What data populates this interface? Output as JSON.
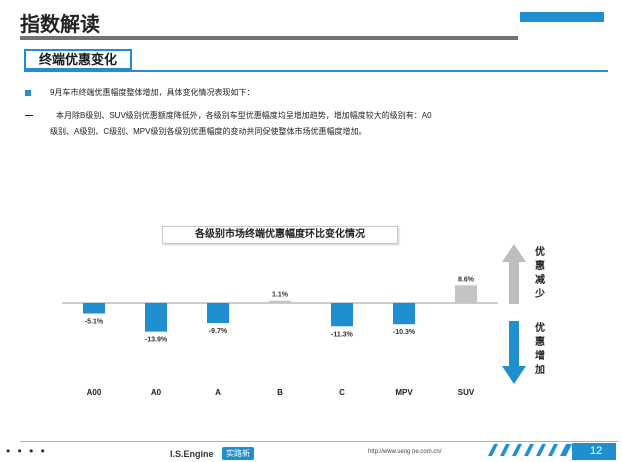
{
  "header": {
    "title": "指数解读",
    "section_label": "终端优惠变化"
  },
  "body": {
    "bullet1": "9月车市终端优惠幅度整体增加，具体变化情况表现如下：",
    "bullet2_line1": "本月除B级别、SUV级别优惠额度降低外，各级别车型优惠幅度均呈增加趋势，增加幅度较大的级别有：A0",
    "bullet2_line2": "级别、A级别、C级别、MPV级别各级别优惠幅度的变动共同促使整体市场优惠幅度增加。"
  },
  "chart_data": {
    "type": "bar",
    "title": "各级别市场终端优惠幅度环比变化情况",
    "categories": [
      "A00",
      "A0",
      "A",
      "B",
      "C",
      "MPV",
      "SUV"
    ],
    "values": [
      -5.1,
      -13.9,
      -9.7,
      1.1,
      -11.3,
      -10.3,
      8.6
    ],
    "value_labels": [
      "-5.1%",
      "-13.9%",
      "-9.7%",
      "1.1%",
      "-11.3%",
      "-10.3%",
      "8.6%"
    ],
    "annotation_up": "优惠减少",
    "annotation_down": "优惠增加",
    "colors": {
      "negative": "#1f8fd0",
      "positive": "#c4c4c4",
      "up_arrow": "#bdbdbd",
      "down_arrow": "#1f8fd0"
    }
  },
  "footer": {
    "dots": "• • • •",
    "brand": "I.S.Engine",
    "brand_cn": "实路新",
    "url": "http://www.seng ne.com.cn/",
    "page_number": "12"
  }
}
